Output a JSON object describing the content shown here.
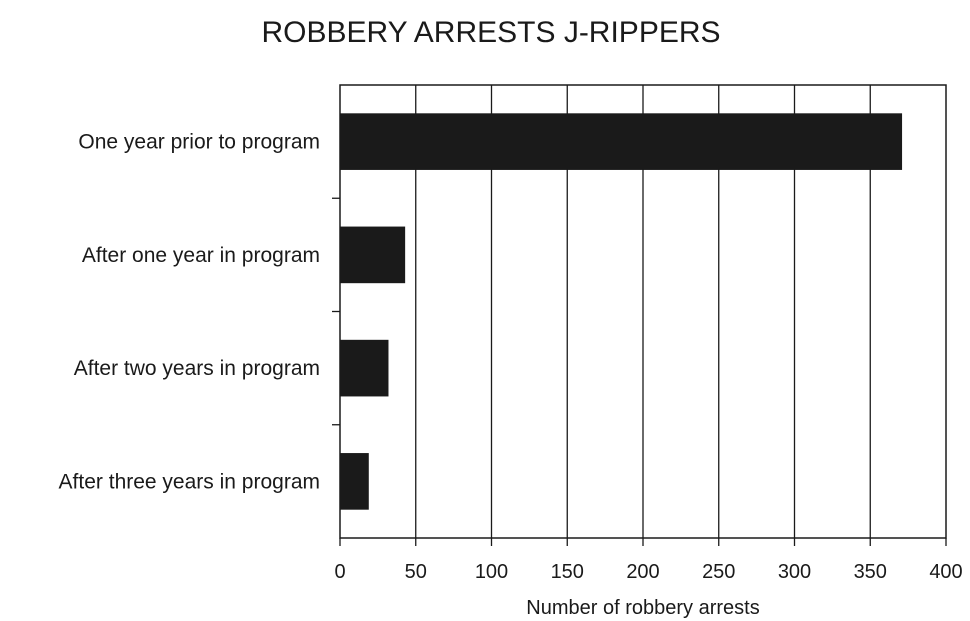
{
  "colors": {
    "bar": "#1a1a1a",
    "grid": "#1a1a1a",
    "background": "#ffffff"
  },
  "chart_data": {
    "type": "bar",
    "orientation": "horizontal",
    "title": "ROBBERY ARRESTS J-RIPPERS",
    "xlabel": "Number of robbery arrests",
    "ylabel": "",
    "categories": [
      "One year prior to program",
      "After one year in program",
      "After two years in program",
      "After three years in program"
    ],
    "values": [
      371,
      43,
      32,
      19
    ],
    "xlim": [
      0,
      400
    ],
    "xticks": [
      0,
      50,
      100,
      150,
      200,
      250,
      300,
      350,
      400
    ],
    "xtick_labels": [
      "0",
      "50",
      "100",
      "150",
      "200",
      "250",
      "300",
      "350",
      "400"
    ],
    "grid": "vertical",
    "legend": "none"
  }
}
